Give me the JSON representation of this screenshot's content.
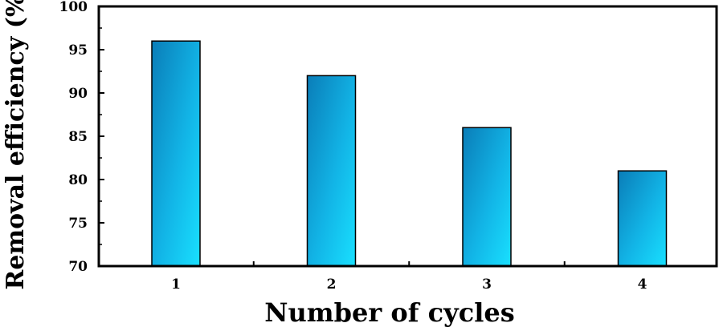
{
  "chart_data": {
    "type": "bar",
    "categories": [
      "1",
      "2",
      "3",
      "4"
    ],
    "values": [
      96,
      92,
      86,
      81
    ],
    "title": "",
    "xlabel": "Number of cycles",
    "ylabel": "Removal efficiency (%)",
    "ylim": [
      70,
      100
    ],
    "yticks": [
      70,
      75,
      80,
      85,
      90,
      95,
      100
    ],
    "grid": false,
    "legend": "none",
    "colors": {
      "bar_light": "#19E0FF",
      "bar_mid": "#12B4E6",
      "bar_dark": "#0A7DB8",
      "axis": "#000000"
    }
  }
}
